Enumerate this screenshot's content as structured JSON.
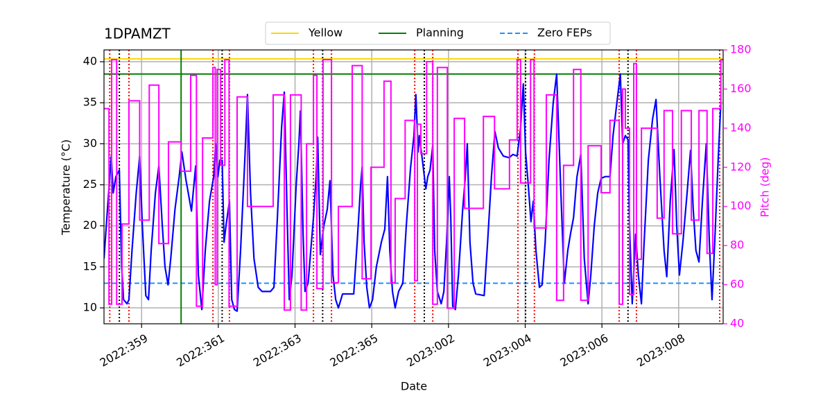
{
  "chart_data": {
    "type": "line",
    "title": "1DPAMZT",
    "xlabel": "Date",
    "ylabel": "Temperature (°C)",
    "y2label": "Pitch (deg)",
    "xlim": [
      -0.98,
      15.16
    ],
    "xticks": [
      {
        "value": 0,
        "label": "2022:359"
      },
      {
        "value": 2,
        "label": "2022:361"
      },
      {
        "value": 4,
        "label": "2022:363"
      },
      {
        "value": 6,
        "label": "2022:365"
      },
      {
        "value": 8,
        "label": "2023:002"
      },
      {
        "value": 10,
        "label": "2023:004"
      },
      {
        "value": 12,
        "label": "2023:006"
      },
      {
        "value": 14,
        "label": "2023:008"
      }
    ],
    "ylim": [
      8.06,
      41.44
    ],
    "yticks": [
      10,
      15,
      20,
      25,
      30,
      35,
      40
    ],
    "y2lim": [
      40,
      180
    ],
    "y2ticks": [
      40,
      60,
      80,
      100,
      120,
      140,
      160,
      180
    ],
    "y2color": "#ff00ff",
    "grid": true,
    "legend": "upper center",
    "series": [
      {
        "color": "#0000ff",
        "axis": "y",
        "x": [
          -0.98,
          -0.89,
          -0.79,
          -0.74,
          -0.67,
          -0.58,
          -0.52,
          -0.47,
          -0.38,
          -0.33,
          -0.25,
          -0.14,
          -0.05,
          0.02,
          0.11,
          0.18,
          0.25,
          0.36,
          0.45,
          0.54,
          0.61,
          0.69,
          0.76,
          0.87,
          0.98,
          1.05,
          1.16,
          1.3,
          1.41,
          1.48,
          1.57,
          1.66,
          1.77,
          1.88,
          1.93,
          1.99,
          2.04,
          2.1,
          2.15,
          2.2,
          2.29,
          2.35,
          2.42,
          2.49,
          2.58,
          2.69,
          2.76,
          2.84,
          2.93,
          3.04,
          3.14,
          3.36,
          3.45,
          3.54,
          3.65,
          3.72,
          3.79,
          3.85,
          3.92,
          4.03,
          4.1,
          4.14,
          4.21,
          4.26,
          4.34,
          4.41,
          4.48,
          4.55,
          4.59,
          4.66,
          4.75,
          4.84,
          4.91,
          4.99,
          5.06,
          5.13,
          5.24,
          5.53,
          5.62,
          5.71,
          5.75,
          5.8,
          5.87,
          5.94,
          6.02,
          6.12,
          6.25,
          6.34,
          6.41,
          6.47,
          6.54,
          6.61,
          6.7,
          6.81,
          6.9,
          7.01,
          7.1,
          7.15,
          7.21,
          7.24,
          7.32,
          7.41,
          7.46,
          7.52,
          7.59,
          7.64,
          7.71,
          7.81,
          7.88,
          7.95,
          8.02,
          8.06,
          8.11,
          8.18,
          8.26,
          8.37,
          8.44,
          8.49,
          8.56,
          8.64,
          8.71,
          8.93,
          9.02,
          9.12,
          9.21,
          9.3,
          9.43,
          9.58,
          9.68,
          9.79,
          9.88,
          9.95,
          10.01,
          10.08,
          10.15,
          10.21,
          10.28,
          10.37,
          10.44,
          10.52,
          10.62,
          10.73,
          10.82,
          10.93,
          11.02,
          11.11,
          11.18,
          11.26,
          11.35,
          11.45,
          11.54,
          11.64,
          11.71,
          11.8,
          11.89,
          11.98,
          12.09,
          12.21,
          12.29,
          12.39,
          12.48,
          12.54,
          12.61,
          12.68,
          12.72,
          12.79,
          12.88,
          12.95,
          13.03,
          13.1,
          13.21,
          13.32,
          13.41,
          13.51,
          13.62,
          13.69,
          13.78,
          13.88,
          13.95,
          14.02,
          14.11,
          14.22,
          14.31,
          14.38,
          14.45,
          14.53,
          14.62,
          14.72,
          14.8,
          14.87,
          14.94,
          15.03,
          15.1
        ],
        "values": [
          16,
          22,
          28.5,
          24,
          26,
          26.8,
          15,
          11,
          10.5,
          11,
          17,
          24,
          28.5,
          20,
          11.5,
          11,
          17,
          24,
          27.3,
          20,
          15,
          12.8,
          16,
          22,
          26,
          29,
          25.5,
          21.8,
          27.3,
          14,
          9.8,
          17,
          23,
          26,
          30,
          26,
          28,
          28,
          18,
          20,
          23,
          11,
          9.8,
          9.6,
          17,
          28,
          36,
          24,
          16,
          12.5,
          12,
          12,
          12.5,
          21,
          32,
          36.3,
          22,
          11,
          14,
          25,
          30,
          34,
          19,
          12,
          13,
          17,
          21,
          26,
          30.8,
          16.5,
          20,
          22,
          25.5,
          14,
          11,
          10,
          11.7,
          11.7,
          18,
          25,
          27.2,
          18,
          12.5,
          10,
          11,
          15,
          18,
          19.6,
          26,
          17,
          12,
          10,
          12,
          13,
          20,
          27,
          31,
          36,
          29,
          31,
          28,
          24.5,
          26,
          26.8,
          29.8,
          17,
          12,
          10.5,
          12,
          18,
          26,
          21,
          10.2,
          9.8,
          14,
          22,
          26,
          30,
          18,
          13,
          11.7,
          11.5,
          18,
          26,
          31.5,
          29.5,
          28.5,
          28.3,
          28.7,
          28.5,
          32,
          37.3,
          29,
          25,
          20.5,
          23,
          17,
          12.5,
          12.8,
          18,
          28,
          35,
          38.5,
          24,
          13,
          17,
          19,
          21,
          26,
          28.7,
          16,
          10.5,
          14,
          20,
          24,
          25.8,
          26,
          26,
          31,
          35,
          38.5,
          30,
          31,
          30.5,
          20,
          10.5,
          19,
          14,
          10.5,
          18,
          28,
          33,
          35.4,
          26,
          17,
          13.8,
          23,
          29.3,
          20,
          14,
          18,
          24,
          29.2,
          22,
          17,
          15.6,
          23,
          30,
          18,
          11,
          18,
          28,
          35
        ]
      },
      {
        "color": "#ff00ff",
        "axis": "y2",
        "step": "post",
        "x": [
          -0.98,
          -0.85,
          -0.78,
          -0.65,
          -0.51,
          -0.33,
          -0.05,
          0.2,
          0.45,
          0.7,
          1.03,
          1.28,
          1.43,
          1.59,
          1.86,
          1.92,
          1.97,
          2.06,
          2.17,
          2.28,
          2.49,
          2.76,
          3.43,
          3.72,
          3.88,
          4.16,
          4.3,
          4.48,
          4.57,
          4.73,
          4.95,
          5.13,
          5.49,
          5.75,
          5.98,
          6.32,
          6.5,
          6.61,
          6.87,
          7.12,
          7.19,
          7.28,
          7.43,
          7.59,
          7.71,
          7.97,
          8.15,
          8.42,
          8.91,
          9.2,
          9.59,
          9.79,
          9.88,
          10.14,
          10.23,
          10.55,
          10.82,
          11.0,
          11.26,
          11.45,
          11.64,
          11.98,
          12.21,
          12.45,
          12.54,
          12.61,
          12.72,
          12.83,
          12.9,
          13.03,
          13.44,
          13.62,
          13.84,
          14.07,
          14.33,
          14.53,
          14.74,
          14.89,
          15.1
        ],
        "values": [
          150,
          50,
          175,
          50,
          91,
          154,
          93,
          162,
          81,
          133,
          118,
          167,
          49,
          135,
          171,
          60,
          170,
          121,
          175,
          49,
          156,
          100,
          157,
          47,
          157,
          47,
          132,
          167,
          58,
          175,
          61,
          100,
          172,
          63,
          120,
          164,
          61,
          104,
          144,
          62,
          142,
          127,
          174,
          50,
          171,
          48,
          145,
          99,
          146,
          109,
          134,
          175,
          112,
          175,
          89,
          157,
          52,
          121,
          170,
          52,
          131,
          107,
          144,
          50,
          160,
          140,
          55,
          173,
          73,
          140,
          94,
          149,
          86,
          149,
          93,
          149,
          76,
          150,
          175
        ]
      }
    ],
    "hlines": [
      {
        "name": "Yellow",
        "color": "#ffd700",
        "style": "solid",
        "value": 40.35
      },
      {
        "name": "Planning",
        "color": "#008000",
        "style": "solid",
        "value": 38.5
      },
      {
        "name": "Zero FEPs",
        "color": "#1e90ff",
        "style": "dashed",
        "value": 13
      }
    ],
    "vlines": [
      {
        "color": "#ff0000",
        "style": "dotted",
        "x": [
          -0.83,
          -0.33,
          1.86,
          2.29,
          4.48,
          4.95,
          7.12,
          7.59,
          9.81,
          10.24,
          12.45,
          12.9,
          15.07
        ]
      },
      {
        "color": "#000000",
        "style": "dotted",
        "x": [
          -0.58,
          2.1,
          4.72,
          7.37,
          10.01,
          12.68
        ]
      },
      {
        "color": "#008000",
        "style": "solid",
        "x": [
          1.03
        ]
      }
    ]
  }
}
